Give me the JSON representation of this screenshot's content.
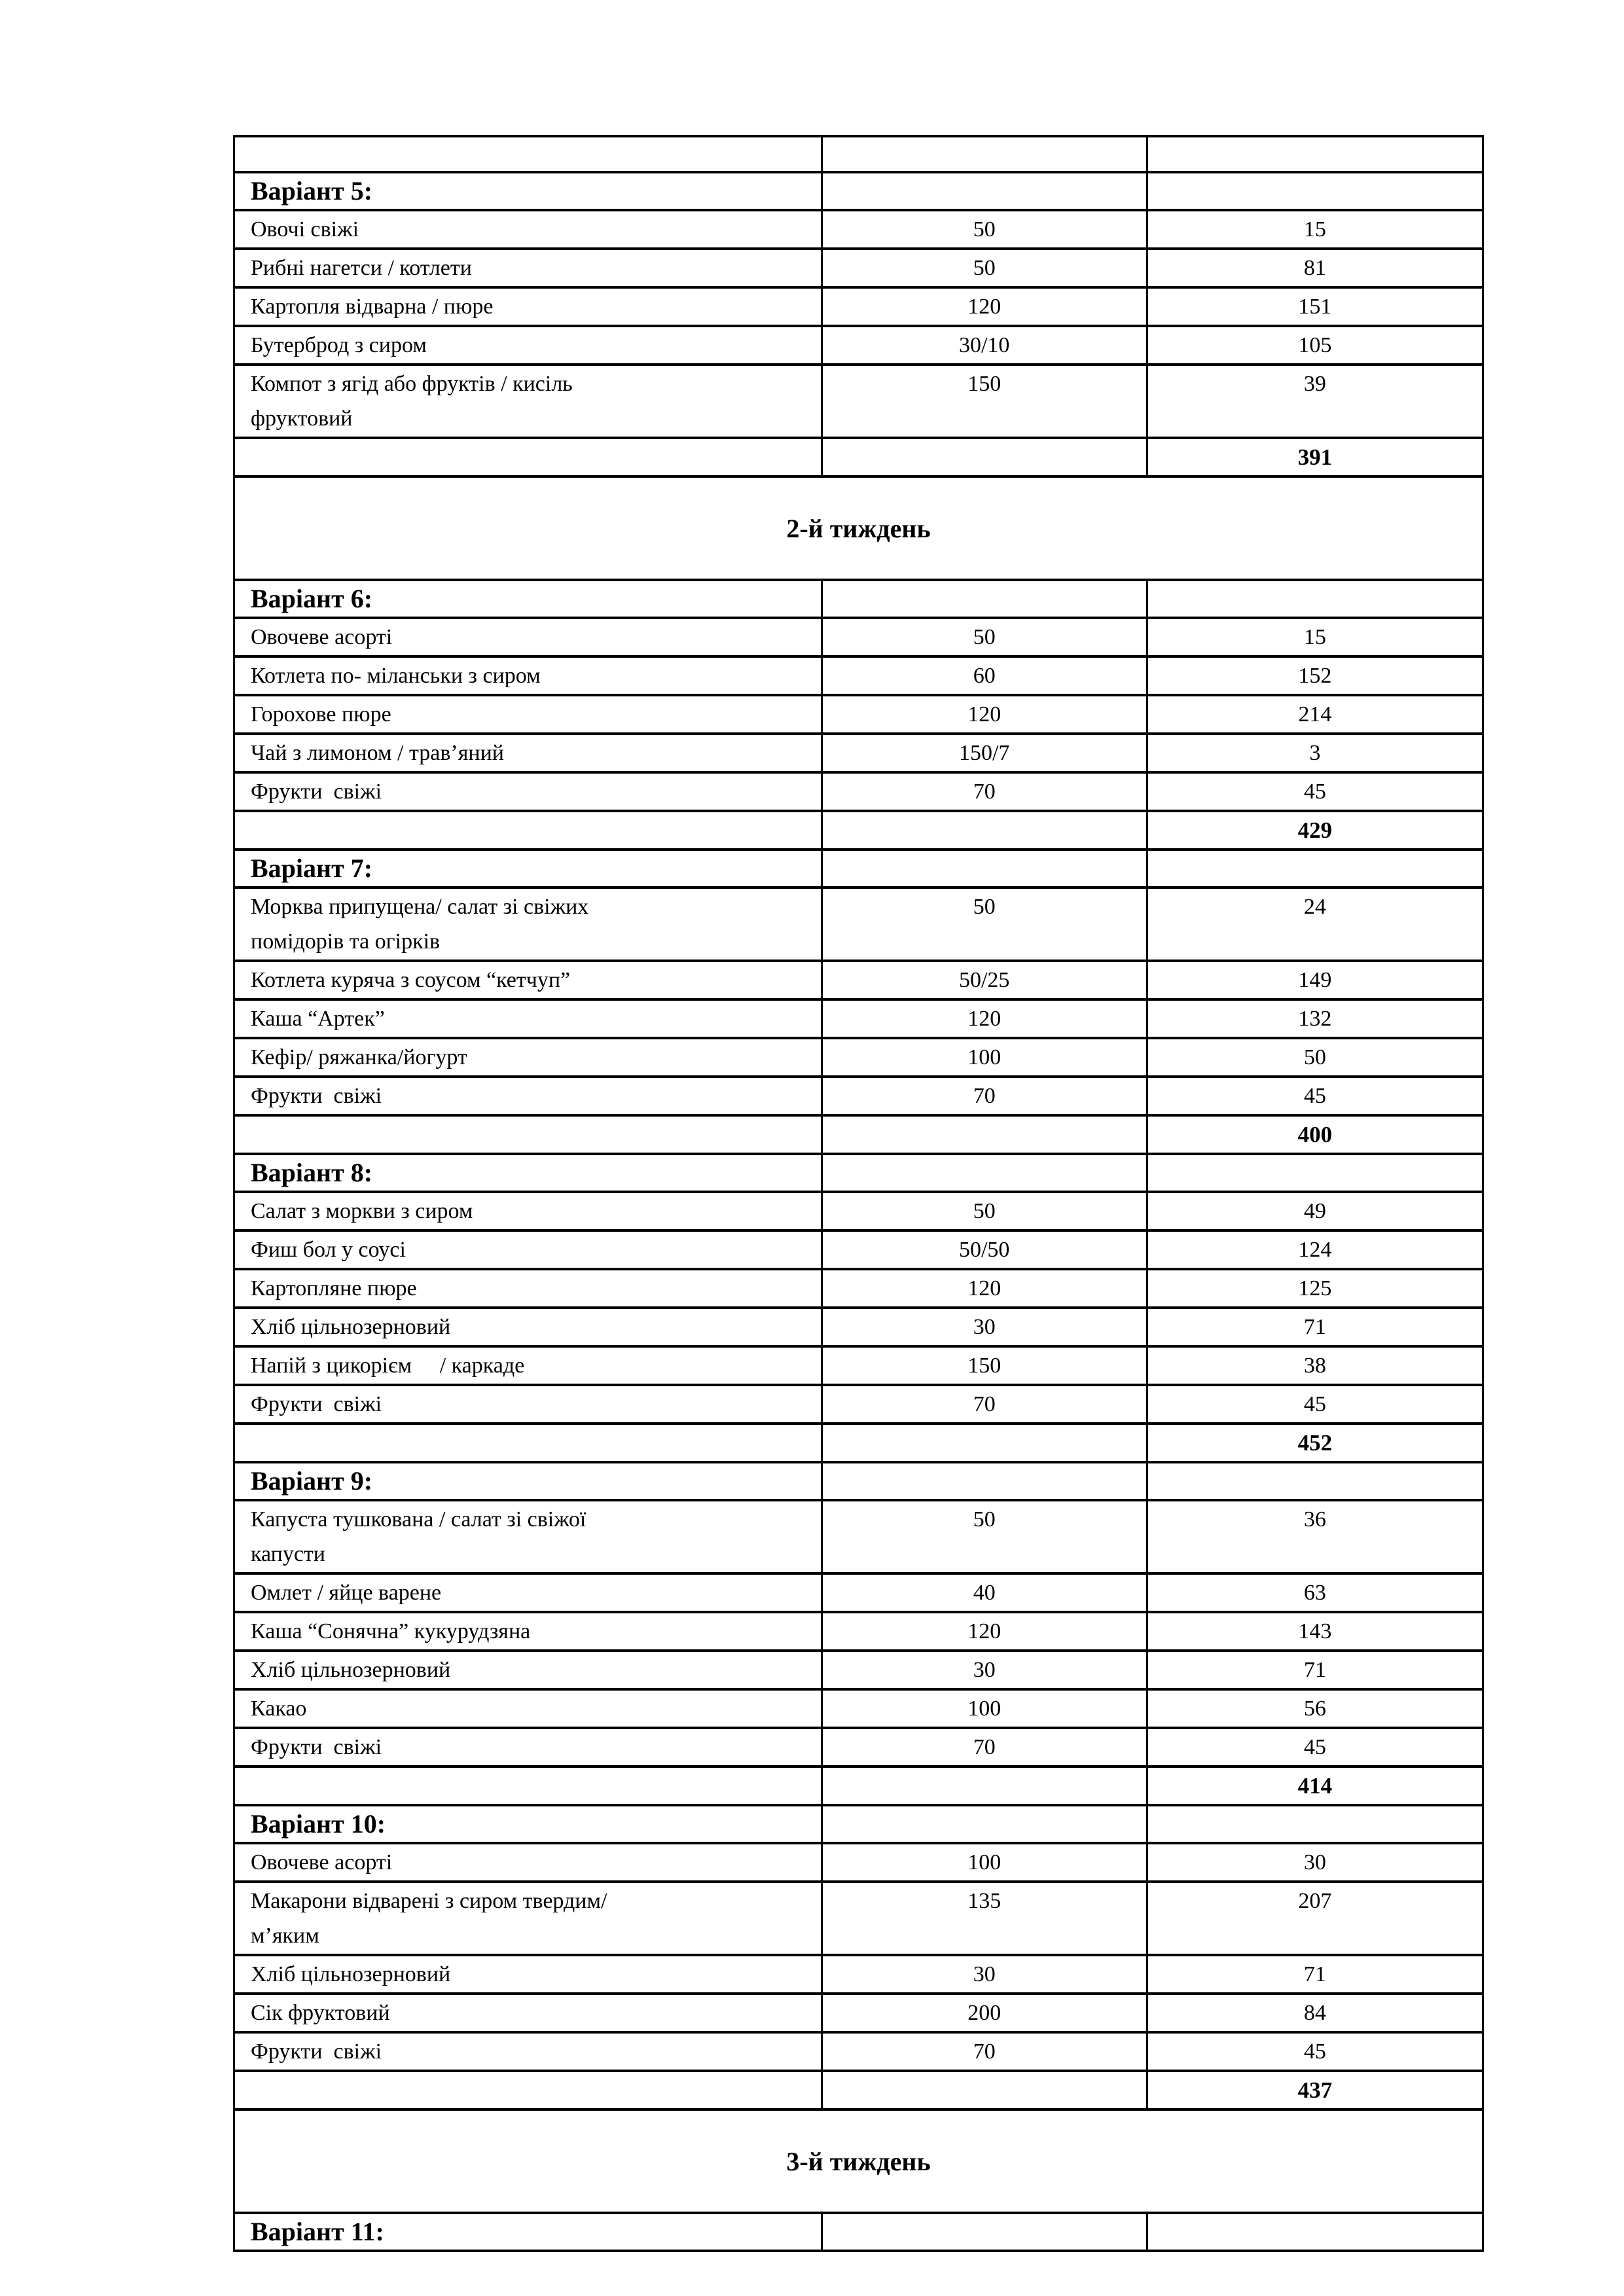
{
  "document": {
    "language": "uk",
    "kind": "menu-table-page",
    "background": "#ffffff",
    "border_color": "#000000"
  },
  "table": {
    "column_roles": [
      "dish",
      "portion",
      "energy"
    ],
    "week_headers": [
      "2-й тиждень",
      "3-й тиждень"
    ],
    "rows": [
      {
        "type": "empty"
      },
      {
        "type": "variant",
        "label": "Варіант 5:"
      },
      {
        "type": "dish",
        "name": "Овочі свіжі",
        "portion": "50",
        "value": "15"
      },
      {
        "type": "dish",
        "name": "Рибні нагетси / котлети",
        "portion": "50",
        "value": "81"
      },
      {
        "type": "dish",
        "name": "Картопля відварна / пюре",
        "portion": "120",
        "value": "151"
      },
      {
        "type": "dish",
        "name": "Бутерброд з сиром",
        "portion": "30/10",
        "value": "105"
      },
      {
        "type": "dish",
        "name": "Компот з ягід або фруктів / кисіль\nфруктовий",
        "portion": "150",
        "value": "39"
      },
      {
        "type": "total",
        "value": "391"
      },
      {
        "type": "week",
        "label": "2-й тиждень"
      },
      {
        "type": "variant",
        "label": "Варіант 6:"
      },
      {
        "type": "dish",
        "name": "Овочеве асорті",
        "portion": "50",
        "value": "15"
      },
      {
        "type": "dish",
        "name": "Котлета по- міланськи з сиром",
        "portion": "60",
        "value": "152"
      },
      {
        "type": "dish",
        "name": "Горохове пюре",
        "portion": "120",
        "value": "214"
      },
      {
        "type": "dish",
        "name": "Чай з лимоном / трав’яний",
        "portion": "150/7",
        "value": "3"
      },
      {
        "type": "dish",
        "name": "Фрукти  свіжі",
        "portion": "70",
        "value": "45"
      },
      {
        "type": "total",
        "value": "429"
      },
      {
        "type": "variant",
        "label": "Варіант 7:"
      },
      {
        "type": "dish",
        "name": "Морква припущена/ салат зі свіжих\nпомідорів та огірків",
        "portion": "50",
        "value": "24"
      },
      {
        "type": "dish",
        "name": "Котлета куряча з соусом “кетчуп”",
        "portion": "50/25",
        "value": "149"
      },
      {
        "type": "dish",
        "name": "Каша “Артек”",
        "portion": "120",
        "value": "132"
      },
      {
        "type": "dish",
        "name": "Кефір/ ряжанка/йогурт",
        "portion": "100",
        "value": "50"
      },
      {
        "type": "dish",
        "name": "Фрукти  свіжі",
        "portion": "70",
        "value": "45"
      },
      {
        "type": "total",
        "value": "400"
      },
      {
        "type": "variant",
        "label": "Варіант 8:"
      },
      {
        "type": "dish",
        "name": "Салат з моркви з сиром",
        "portion": "50",
        "value": "49"
      },
      {
        "type": "dish",
        "name": "Фиш бол у соусі",
        "portion": "50/50",
        "value": "124"
      },
      {
        "type": "dish",
        "name": "Картопляне пюре",
        "portion": "120",
        "value": "125"
      },
      {
        "type": "dish",
        "name": "Хліб цільнозерновий",
        "portion": "30",
        "value": "71"
      },
      {
        "type": "dish",
        "name": "Напій з цикорієм     / каркаде",
        "portion": "150",
        "value": "38"
      },
      {
        "type": "dish",
        "name": "Фрукти  свіжі",
        "portion": "70",
        "value": "45"
      },
      {
        "type": "total",
        "value": "452"
      },
      {
        "type": "variant",
        "label": "Варіант 9:"
      },
      {
        "type": "dish",
        "name": "Капуста тушкована / салат зі свіжої\nкапусти",
        "portion": "50",
        "value": "36"
      },
      {
        "type": "dish",
        "name": "Омлет / яйце варене",
        "portion": "40",
        "value": "63"
      },
      {
        "type": "dish",
        "name": "Каша “Сонячна” кукурудзяна",
        "portion": "120",
        "value": "143"
      },
      {
        "type": "dish",
        "name": "Хліб цільнозерновий",
        "portion": "30",
        "value": "71"
      },
      {
        "type": "dish",
        "name": "Какао",
        "portion": "100",
        "value": "56"
      },
      {
        "type": "dish",
        "name": "Фрукти  свіжі",
        "portion": "70",
        "value": "45"
      },
      {
        "type": "total",
        "value": "414"
      },
      {
        "type": "variant",
        "label": "Варіант 10:"
      },
      {
        "type": "dish",
        "name": "Овочеве асорті",
        "portion": "100",
        "value": "30"
      },
      {
        "type": "dish",
        "name": "Макарони відварені з сиром твердим/\nм’яким",
        "portion": "135",
        "value": "207"
      },
      {
        "type": "dish",
        "name": "Хліб цільнозерновий",
        "portion": "30",
        "value": "71"
      },
      {
        "type": "dish",
        "name": "Сік фруктовий",
        "portion": "200",
        "value": "84"
      },
      {
        "type": "dish",
        "name": "Фрукти  свіжі",
        "portion": "70",
        "value": "45"
      },
      {
        "type": "total",
        "value": "437"
      },
      {
        "type": "week",
        "label": "3-й тиждень"
      },
      {
        "type": "variant",
        "label": "Варіант 11:"
      }
    ]
  }
}
